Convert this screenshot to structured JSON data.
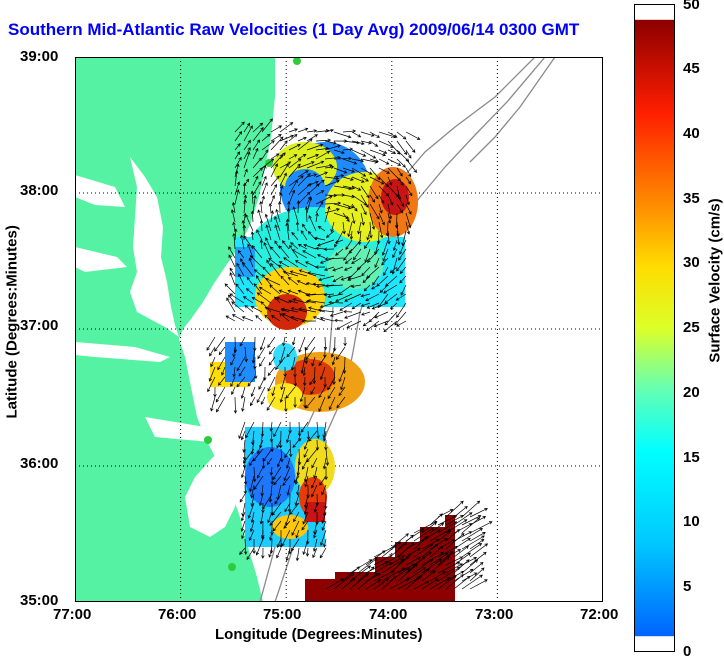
{
  "title": "Southern Mid-Atlantic Raw Velocities (1 Day Avg) 2009/06/14 0300 GMT",
  "xaxis": {
    "label": "Longitude (Degrees:Minutes)",
    "ticks": [
      "77:00",
      "76:00",
      "75:00",
      "74:00",
      "73:00",
      "72:00"
    ]
  },
  "yaxis": {
    "label": "Latitude (Degrees:Minutes)",
    "ticks": [
      "39:00",
      "38:00",
      "37:00",
      "36:00",
      "35:00"
    ]
  },
  "colorbar": {
    "label": "Surface Velocity (cm/s)",
    "ticks": [
      "50",
      "45",
      "40",
      "35",
      "30",
      "25",
      "20",
      "15",
      "10",
      "5",
      "0"
    ],
    "range": [
      0,
      50
    ]
  },
  "colors": {
    "land": "#55f2a4",
    "title": "#0000ff",
    "station": "#2dcc3a"
  }
}
